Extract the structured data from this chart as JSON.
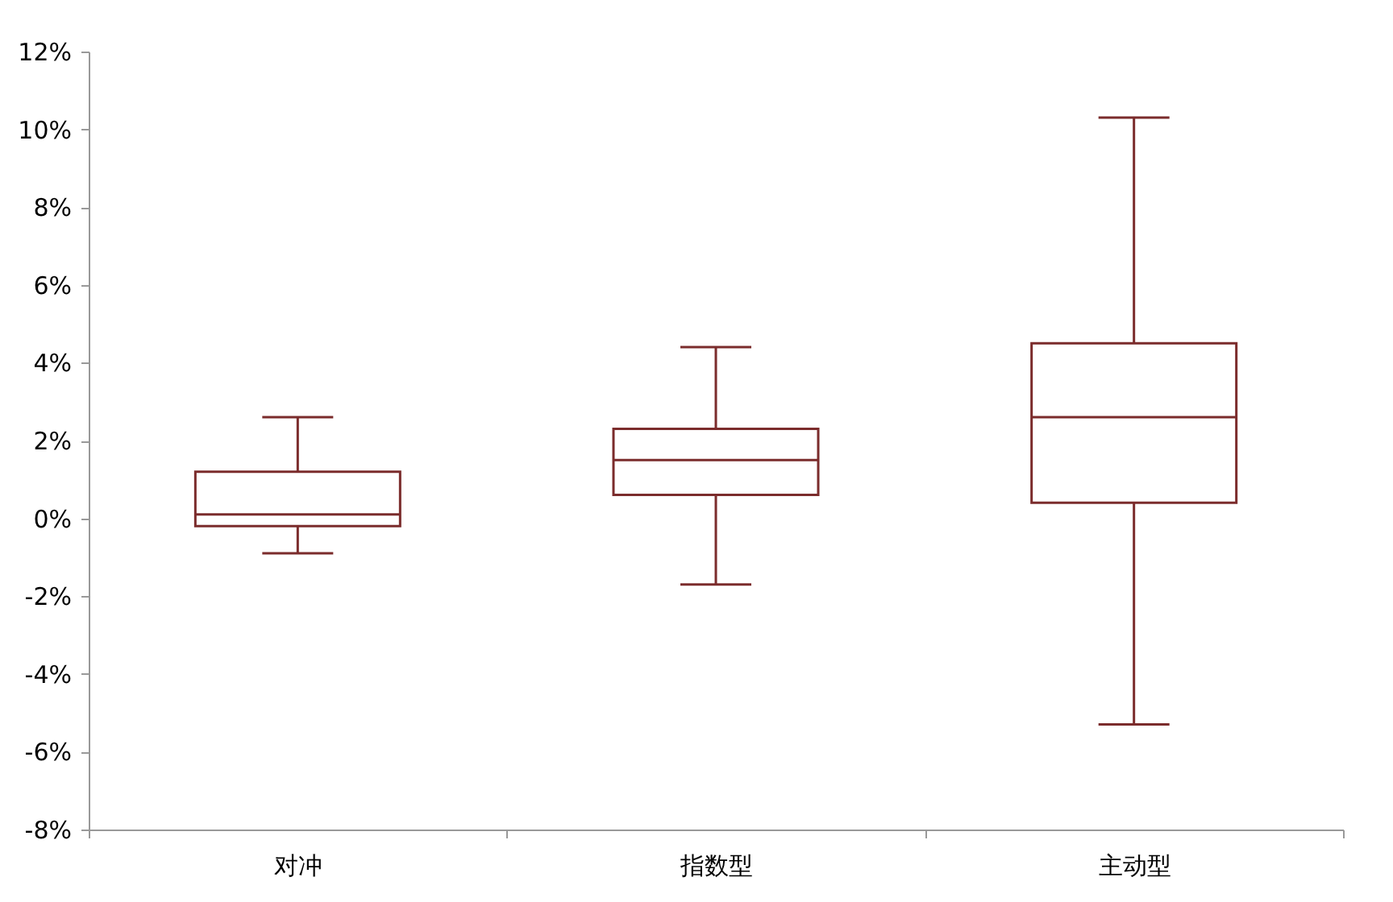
{
  "chart_data": {
    "type": "box",
    "categories": [
      "对冲",
      "指数型",
      "主动型"
    ],
    "boxes": [
      {
        "low": -0.9,
        "q1": -0.2,
        "median": 0.1,
        "q3": 1.2,
        "high": 2.6
      },
      {
        "low": -1.7,
        "q1": 0.6,
        "median": 1.5,
        "q3": 2.3,
        "high": 4.4
      },
      {
        "low": -5.3,
        "q1": 0.4,
        "median": 2.6,
        "q3": 4.5,
        "high": 10.3
      }
    ],
    "color": "#7b2c2c",
    "ylim": [
      -8,
      12
    ],
    "yticks": [
      {
        "value": -8,
        "label": "-8%"
      },
      {
        "value": -6,
        "label": "-6%"
      },
      {
        "value": -4,
        "label": "-4%"
      },
      {
        "value": -2,
        "label": "-2%"
      },
      {
        "value": 0,
        "label": "0%"
      },
      {
        "value": 2,
        "label": "2%"
      },
      {
        "value": 4,
        "label": "4%"
      },
      {
        "value": 6,
        "label": "6%"
      },
      {
        "value": 8,
        "label": "8%"
      },
      {
        "value": 10,
        "label": "10%"
      },
      {
        "value": 12,
        "label": "12%"
      }
    ],
    "grid": false
  }
}
